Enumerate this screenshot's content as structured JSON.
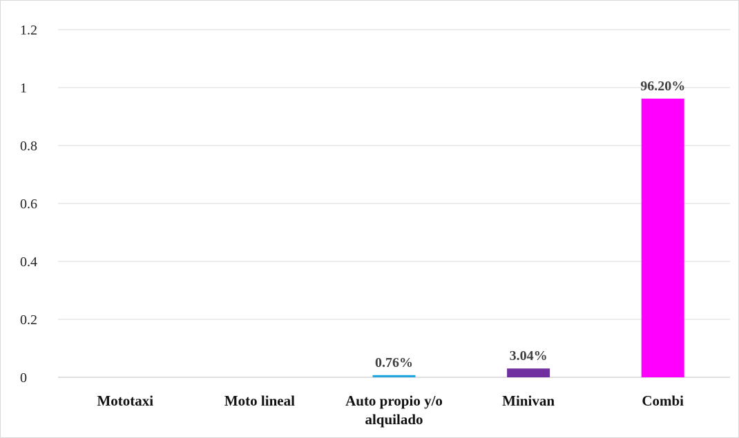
{
  "chart_data": {
    "type": "bar",
    "title": "",
    "xlabel": "",
    "ylabel": "",
    "ylim": [
      0,
      1.2
    ],
    "yticks": [
      0,
      0.2,
      0.4,
      0.6,
      0.8,
      1,
      1.2
    ],
    "ytick_labels": [
      "0",
      "0.2",
      "0.4",
      "0.6",
      "0.8",
      "1",
      "1.2"
    ],
    "grid": true,
    "legend": "none",
    "categories": [
      [
        "Mototaxi"
      ],
      [
        "Moto lineal"
      ],
      [
        "Auto propio y/o",
        "alquilado"
      ],
      [
        "Minivan"
      ],
      [
        "Combi"
      ]
    ],
    "values": [
      0,
      0,
      0.0076,
      0.0304,
      0.962
    ],
    "data_labels": [
      "",
      "",
      "0.76%",
      "3.04%",
      "96.20%"
    ],
    "colors": [
      "#1fa7e1",
      "#1fa7e1",
      "#1fa7e1",
      "#7030a0",
      "#ff00ff"
    ]
  }
}
